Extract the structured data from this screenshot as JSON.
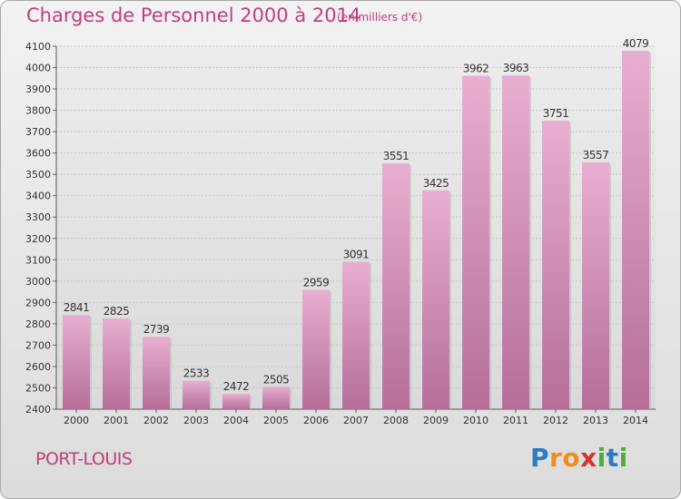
{
  "title": "Charges de Personnel 2000 à 2014",
  "subtitle": "(en milliers d'€)",
  "place": "PORT-LOUIS",
  "brand": {
    "letters": [
      "P",
      "r",
      "o",
      "x",
      "i",
      "t",
      "i"
    ],
    "colors": [
      "#2b7bc4",
      "#f08c1e",
      "#f08c1e",
      "#d8332a",
      "#4cae3a",
      "#2b7bc4",
      "#4cae3a"
    ]
  },
  "colors": {
    "bar_top": "#e8aed0",
    "bar_bottom": "#b56e98",
    "text_accent": "#c0407a",
    "grid": "#c6c6c6"
  },
  "chart_data": {
    "type": "bar",
    "title": "Charges de Personnel 2000 à 2014",
    "subtitle": "(en milliers d'€)",
    "xlabel": "",
    "ylabel": "",
    "categories": [
      "2000",
      "2001",
      "2002",
      "2003",
      "2004",
      "2005",
      "2006",
      "2007",
      "2008",
      "2009",
      "2010",
      "2011",
      "2012",
      "2013",
      "2014"
    ],
    "values": [
      2841,
      2825,
      2739,
      2533,
      2472,
      2505,
      2959,
      3091,
      3551,
      3425,
      3962,
      3963,
      3751,
      3557,
      4079
    ],
    "ylim": [
      2400,
      4100
    ],
    "yticks": [
      2400,
      2500,
      2600,
      2700,
      2800,
      2900,
      3000,
      3100,
      3200,
      3300,
      3400,
      3500,
      3600,
      3700,
      3800,
      3900,
      4000,
      4100
    ],
    "grid": true,
    "data_labels": true
  }
}
